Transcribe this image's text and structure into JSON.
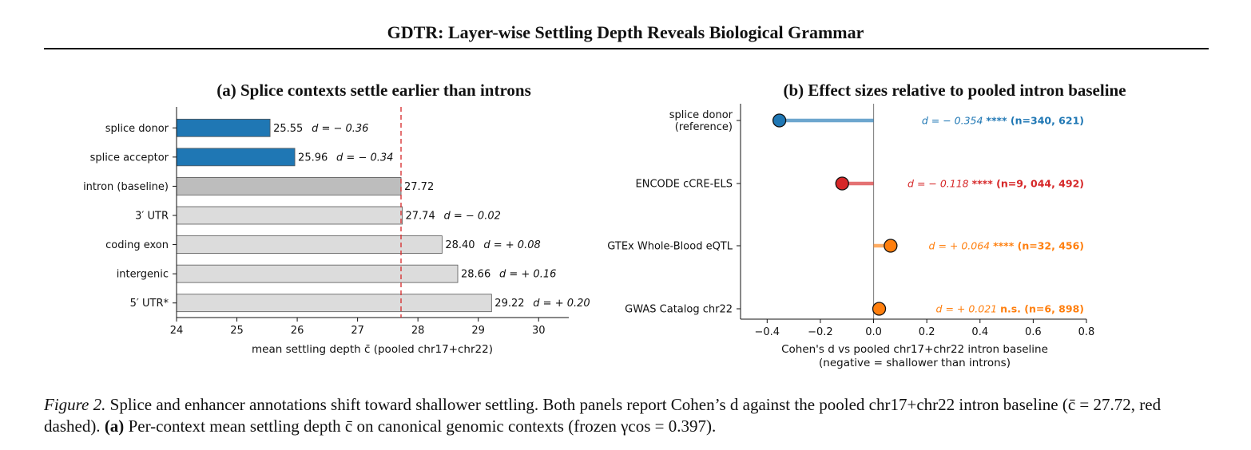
{
  "header": {
    "title": "GDTR: Layer-wise Settling Depth Reveals Biological Grammar"
  },
  "chart_data": [
    {
      "type": "bar",
      "orientation": "horizontal",
      "title": "(a) Splice contexts settle earlier than introns",
      "xlabel": "mean settling depth c̄ (pooled chr17+chr22)",
      "xlim": [
        24,
        30.5
      ],
      "xticks": [
        24,
        25,
        26,
        27,
        28,
        29,
        30
      ],
      "reference_line": {
        "value": 27.72,
        "style": "red dashed"
      },
      "categories": [
        "splice donor",
        "splice acceptor",
        "intron (baseline)",
        "3′ UTR",
        "coding exon",
        "intergenic",
        "5′ UTR*"
      ],
      "values": [
        25.55,
        25.96,
        27.72,
        27.74,
        28.4,
        28.66,
        29.22
      ],
      "value_labels": [
        "25.55",
        "25.96",
        "27.72",
        "27.74",
        "28.40",
        "28.66",
        "29.22"
      ],
      "d_labels": [
        "d = − 0.36",
        "d = − 0.34",
        "",
        "d = − 0.02",
        "d = + 0.08",
        "d = + 0.16",
        "d = + 0.20"
      ],
      "colors": [
        "#1f77b4",
        "#1f77b4",
        "#bdbdbd",
        "#dcdcdc",
        "#dcdcdc",
        "#dcdcdc",
        "#dcdcdc"
      ]
    },
    {
      "type": "lollipop",
      "title": "(b) Effect sizes relative to pooled intron baseline",
      "xlabel": "Cohen's d vs pooled chr17+chr22 intron baseline",
      "xlabel2": "(negative = shallower than introns)",
      "xlim": [
        -0.5,
        0.8
      ],
      "xticks": [
        -0.4,
        -0.2,
        0.0,
        0.2,
        0.4,
        0.6,
        0.8
      ],
      "xtick_labels": [
        "−0.4",
        "−0.2",
        "0.0",
        "0.2",
        "0.4",
        "0.6",
        "0.8"
      ],
      "reference_line": {
        "value": 0.0
      },
      "categories": [
        {
          "line1": "splice donor",
          "line2": "(reference)"
        },
        {
          "line1": "ENCODE cCRE-ELS",
          "line2": ""
        },
        {
          "line1": "GTEx Whole-Blood eQTL",
          "line2": ""
        },
        {
          "line1": "GWAS Catalog chr22",
          "line2": ""
        }
      ],
      "values": [
        -0.354,
        -0.118,
        0.064,
        0.021
      ],
      "colors": [
        "#1f77b4",
        "#d62728",
        "#ff7f0e",
        "#ff7f0e"
      ],
      "annotations": [
        {
          "d": "d = − 0.354",
          "sig": "****",
          "n": "(n=340, 621)"
        },
        {
          "d": "d = − 0.118",
          "sig": "****",
          "n": "(n=9, 044, 492)"
        },
        {
          "d": "d = + 0.064",
          "sig": "****",
          "n": "(n=32, 456)"
        },
        {
          "d": "d = + 0.021",
          "sig": "n.s.",
          "n": "(n=6, 898)"
        }
      ]
    }
  ],
  "caption": {
    "label": "Figure 2.",
    "text1": "Splice and enhancer annotations shift toward shallower settling. Both panels report Cohen’s d against the pooled chr17+chr22 intron baseline (c̄ = 27.72, red dashed).",
    "bold_a": "(a)",
    "text2": "Per-context mean settling depth c̄ on canonical genomic contexts (frozen γcos = 0.397)."
  }
}
